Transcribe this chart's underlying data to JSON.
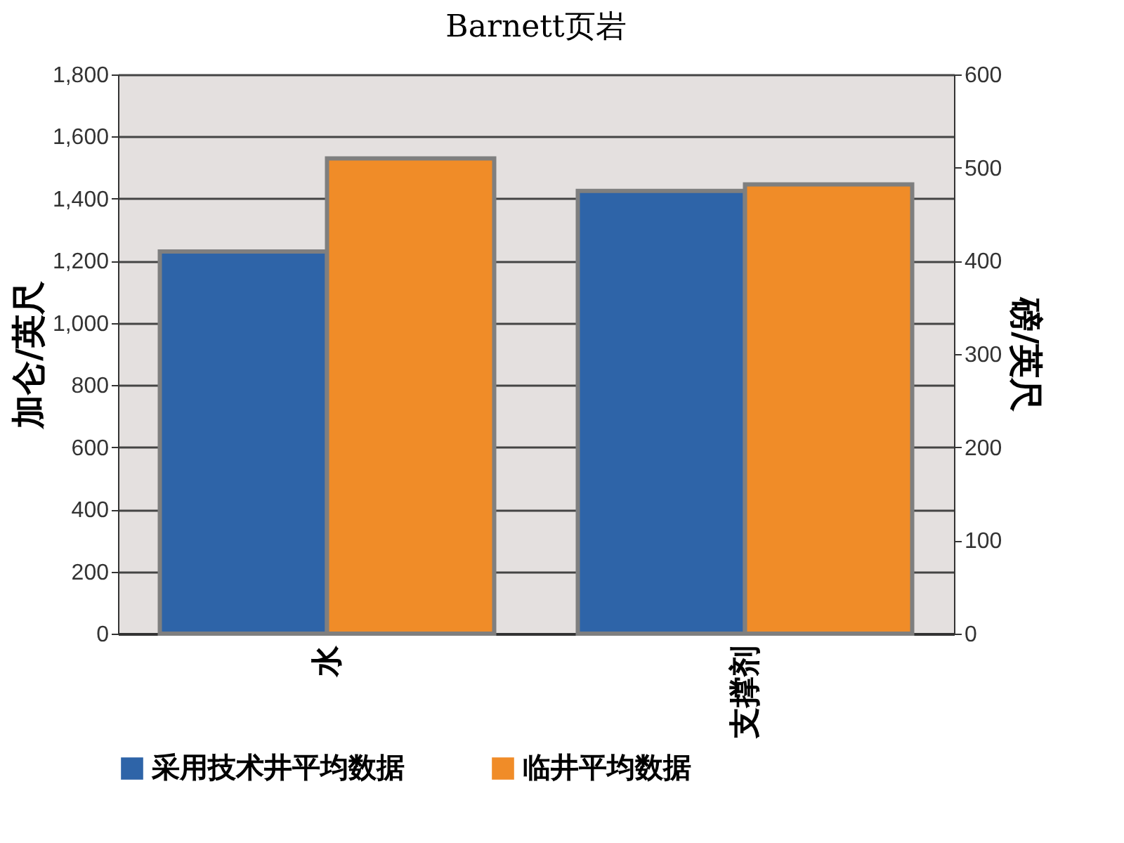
{
  "chart_data": {
    "type": "bar",
    "title": "Barnett页岩",
    "ylabel": "加仑/英尺",
    "y2label": "磅/英尺",
    "categories": [
      "水",
      "支撑剂"
    ],
    "series": [
      {
        "name": "采用技术井平均数据",
        "color": "#2e64a8",
        "values": [
          1230,
          null
        ]
      },
      {
        "name": "临井平均数据",
        "color": "#f08c28",
        "values": [
          1530,
          null
        ]
      },
      {
        "color": "#2e64a8",
        "values": [
          null,
          475
        ],
        "axis": "y2"
      },
      {
        "color": "#f08c28",
        "values": [
          null,
          482
        ],
        "axis": "y2"
      }
    ],
    "ylim": [
      0,
      1800
    ],
    "yticks": [
      {
        "value": 0,
        "label": "0"
      },
      {
        "value": 200,
        "label": "200"
      },
      {
        "value": 400,
        "label": "400"
      },
      {
        "value": 600,
        "label": "600"
      },
      {
        "value": 800,
        "label": "800"
      },
      {
        "value": 1000,
        "label": "1,000"
      },
      {
        "value": 1200,
        "label": "1,200"
      },
      {
        "value": 1400,
        "label": "1,400"
      },
      {
        "value": 1600,
        "label": "1,600"
      },
      {
        "value": 1800,
        "label": "1,800"
      }
    ],
    "y2lim": [
      0,
      600
    ],
    "y2ticks": [
      0,
      100,
      200,
      300,
      400,
      500,
      600
    ],
    "grid": "y",
    "legend": "bottom"
  }
}
